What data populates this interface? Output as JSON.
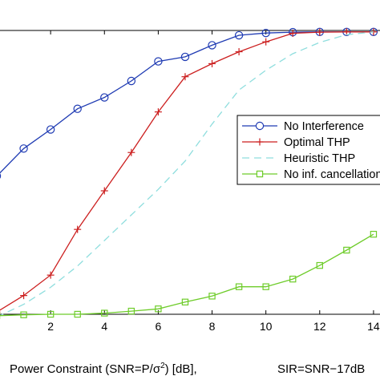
{
  "chart_data": {
    "type": "line",
    "xlabel": "Power Constraint (SNR=P/σ",
    "xlabel_sup": "2",
    "xlabel_tail": ") [dB],",
    "xlabel_extra": "SIR=SNR−17dB",
    "x_ticks": [
      2,
      4,
      6,
      8,
      10,
      12,
      14
    ],
    "y_ticks": [],
    "xlim": [
      0,
      14.3
    ],
    "ylim": [
      0,
      1
    ],
    "grid": false,
    "legend_position": "right",
    "series": [
      {
        "name": "No Interference",
        "color": "#1f3bb3",
        "marker": "circle",
        "dash": "solid",
        "x": [
          0,
          1,
          2,
          3,
          4,
          5,
          6,
          7,
          8,
          9,
          10,
          11,
          12,
          13,
          14
        ],
        "y": [
          0.487,
          0.584,
          0.651,
          0.724,
          0.764,
          0.822,
          0.891,
          0.907,
          0.948,
          0.983,
          0.991,
          0.994,
          0.995,
          0.995,
          0.995
        ]
      },
      {
        "name": "Optimal THP",
        "color": "#cc1f1f",
        "marker": "plus",
        "dash": "solid",
        "x": [
          0,
          1,
          2,
          3,
          4,
          5,
          6,
          7,
          8,
          9,
          10,
          11,
          12,
          13,
          14
        ],
        "y": [
          0.008,
          0.066,
          0.138,
          0.299,
          0.435,
          0.57,
          0.713,
          0.837,
          0.883,
          0.925,
          0.96,
          0.99,
          0.994,
          0.995,
          0.995
        ]
      },
      {
        "name": "Heuristic THP",
        "color": "#8fdede",
        "marker": "none",
        "dash": "dashed",
        "x": [
          0,
          1,
          2,
          3,
          4,
          5,
          6,
          7,
          8,
          9,
          10,
          11,
          12,
          13,
          14
        ],
        "y": [
          -0.01,
          0.035,
          0.095,
          0.17,
          0.26,
          0.35,
          0.44,
          0.54,
          0.67,
          0.79,
          0.86,
          0.918,
          0.958,
          0.985,
          0.995
        ]
      },
      {
        "name": "No inf. cancellation",
        "color": "#6ecc2a",
        "marker": "square",
        "dash": "solid",
        "x": [
          0,
          1,
          2,
          3,
          4,
          5,
          6,
          7,
          8,
          9,
          10,
          11,
          12,
          13,
          14
        ],
        "y": [
          -0.005,
          -0.002,
          0.0,
          0.0,
          0.004,
          0.011,
          0.019,
          0.043,
          0.064,
          0.097,
          0.097,
          0.124,
          0.172,
          0.226,
          0.282
        ]
      }
    ]
  }
}
